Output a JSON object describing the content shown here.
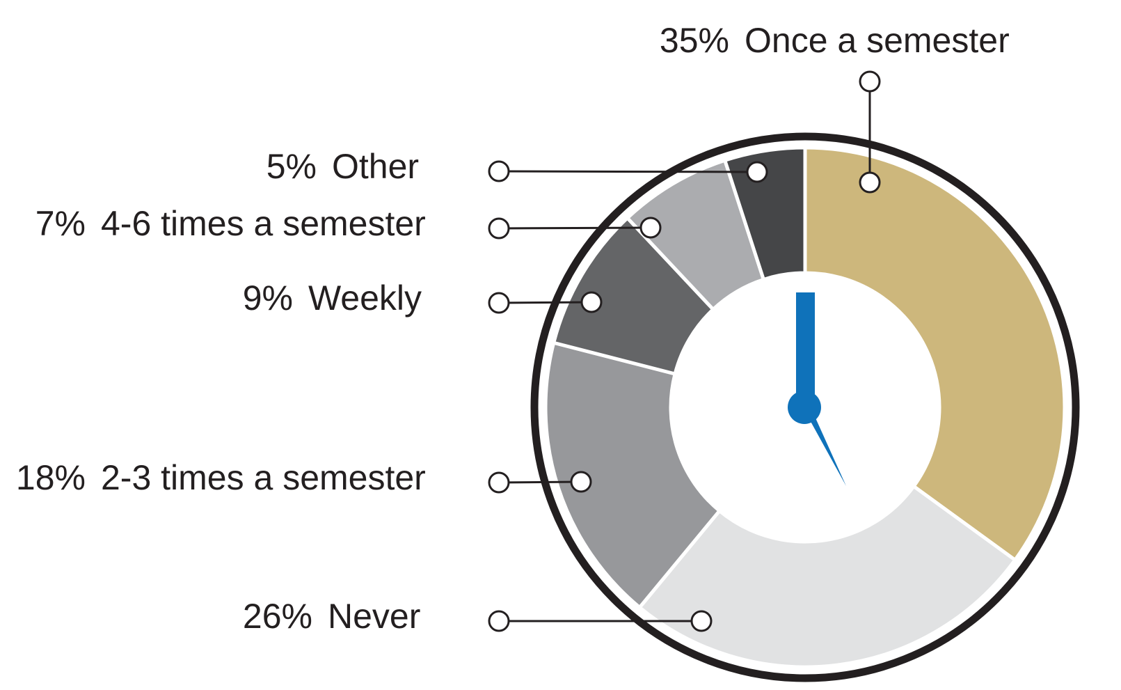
{
  "chart_data": {
    "type": "pie",
    "categories": [
      "Once a semester",
      "Never",
      "2-3 times a semester",
      "Weekly",
      "4-6 times a semester",
      "Other"
    ],
    "values": [
      35,
      26,
      18,
      9,
      7,
      5
    ],
    "value_labels": [
      "35%",
      "26%",
      "18%",
      "9%",
      "7%",
      "5%"
    ],
    "colors": [
      "#cdb77c",
      "#e1e2e3",
      "#97989b",
      "#646567",
      "#abacaf",
      "#454648"
    ]
  }
}
